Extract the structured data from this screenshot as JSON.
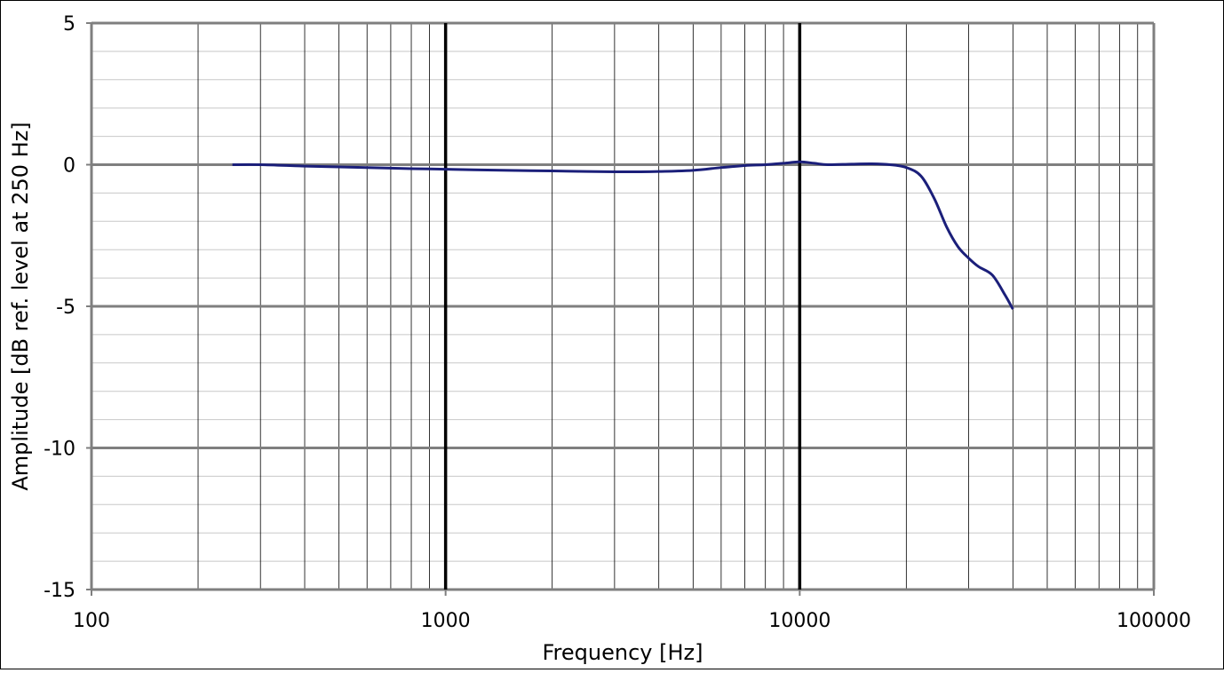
{
  "chart_data": {
    "type": "line",
    "xscale": "log",
    "xlim": [
      100,
      100000
    ],
    "ylim": [
      -15,
      5
    ],
    "xlabel": "Frequency [Hz]",
    "ylabel": "Amplitude [dB ref. level at 250 Hz]",
    "xticks": [
      "100",
      "1000",
      "10000",
      "100000"
    ],
    "yticks": [
      "5",
      "0",
      "-5",
      "-10",
      "-15"
    ],
    "grid": true,
    "legend": "none",
    "colors": {
      "line": "#1b1f7a",
      "major_grid": "#000000",
      "minor_grid": "#000000",
      "horizontal_grid": "#7f7f7f",
      "horizontal_minor_grid": "#c8c8c8"
    },
    "series": [
      {
        "x": [
          250,
          300,
          400,
          500,
          600,
          700,
          800,
          900,
          1000,
          1200,
          1500,
          2000,
          2500,
          3000,
          3500,
          4000,
          5000,
          6000,
          7000,
          8000,
          9000,
          10000,
          11000,
          12000,
          14000,
          16000,
          18000,
          20000,
          22000,
          24000,
          26000,
          28000,
          30000,
          32000,
          35000,
          38000,
          40000
        ],
        "y": [
          0.0,
          0.0,
          -0.05,
          -0.08,
          -0.1,
          -0.12,
          -0.14,
          -0.15,
          -0.16,
          -0.18,
          -0.2,
          -0.22,
          -0.24,
          -0.25,
          -0.25,
          -0.24,
          -0.2,
          -0.1,
          -0.03,
          0.0,
          0.05,
          0.1,
          0.05,
          0.0,
          0.02,
          0.03,
          0.0,
          -0.1,
          -0.4,
          -1.2,
          -2.2,
          -2.9,
          -3.3,
          -3.6,
          -3.9,
          -4.6,
          -5.1
        ]
      }
    ]
  }
}
